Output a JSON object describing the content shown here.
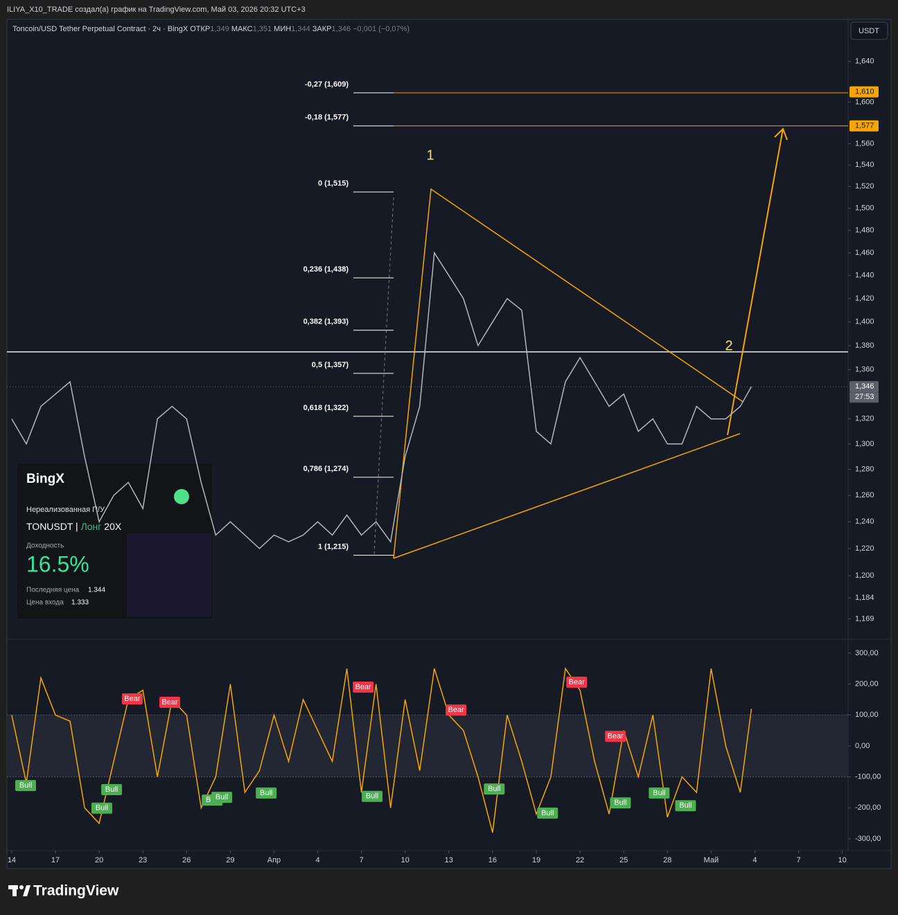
{
  "header": "ILIYA_X10_TRADE создал(а) график на TradingView.com, Май 03, 2026 20:32 UTC+3",
  "footer": "TradingView",
  "overlay": {
    "brand": "BingX",
    "pnl_label": "Нереализованная П/У",
    "symbol": "TONUSDT",
    "side": "Лонг",
    "leverage": "20X",
    "yield_label": "Доходность",
    "yield": "16.5%",
    "last_price_label": "Последняя цена",
    "last_price": "1.344",
    "entry_label": "Цена входа",
    "entry": "1.333"
  },
  "chart_data": [
    {
      "type": "line",
      "title": "Toncoin/USD Tether Perpetual Contract · 2ч · BingX",
      "ohlc": [
        "ОТКР",
        "1,349",
        "МАКС",
        "1,351",
        "МИН",
        "1,344",
        "ЗАКР",
        "1,346"
      ],
      "change": "−0,001 (−0,07%)",
      "currency": "USDT",
      "log_scale": true,
      "color": "#b2b5be",
      "xlim": [
        -0.33,
        57.4
      ],
      "ylim": [
        1156,
        1681
      ],
      "xticks": [
        {
          "value": 0,
          "label": "14"
        },
        {
          "value": 3,
          "label": "17"
        },
        {
          "value": 6,
          "label": "20"
        },
        {
          "value": 9,
          "label": "23"
        },
        {
          "value": 12,
          "label": "26"
        },
        {
          "value": 15,
          "label": "29"
        },
        {
          "value": 18,
          "label": "Апр"
        },
        {
          "value": 21,
          "label": "4"
        },
        {
          "value": 24,
          "label": "7"
        },
        {
          "value": 27,
          "label": "10"
        },
        {
          "value": 30,
          "label": "13"
        },
        {
          "value": 33,
          "label": "16"
        },
        {
          "value": 36,
          "label": "19"
        },
        {
          "value": 39,
          "label": "22"
        },
        {
          "value": 42,
          "label": "25"
        },
        {
          "value": 45,
          "label": "28"
        },
        {
          "value": 48,
          "label": "Май"
        },
        {
          "value": 51,
          "label": "4"
        },
        {
          "value": 54,
          "label": "7"
        },
        {
          "value": 57,
          "label": "10"
        }
      ],
      "yticks": [
        {
          "value": 1640,
          "label": "1,640"
        },
        {
          "value": 1600,
          "label": "1,600"
        },
        {
          "value": 1560,
          "label": "1,560"
        },
        {
          "value": 1540,
          "label": "1,540"
        },
        {
          "value": 1520,
          "label": "1,520"
        },
        {
          "value": 1500,
          "label": "1,500"
        },
        {
          "value": 1480,
          "label": "1,480"
        },
        {
          "value": 1460,
          "label": "1,460"
        },
        {
          "value": 1440,
          "label": "1,440"
        },
        {
          "value": 1420,
          "label": "1,420"
        },
        {
          "value": 1400,
          "label": "1,400"
        },
        {
          "value": 1380,
          "label": "1,380"
        },
        {
          "value": 1360,
          "label": "1,360"
        },
        {
          "value": 1320,
          "label": "1,320"
        },
        {
          "value": 1300,
          "label": "1,300"
        },
        {
          "value": 1280,
          "label": "1,280"
        },
        {
          "value": 1260,
          "label": "1,260"
        },
        {
          "value": 1240,
          "label": "1,240"
        },
        {
          "value": 1220,
          "label": "1,220"
        },
        {
          "value": 1200,
          "label": "1,200"
        },
        {
          "value": 1184,
          "label": "1,184"
        },
        {
          "value": 1169,
          "label": "1,169"
        }
      ],
      "x": [
        0,
        1,
        2,
        3,
        4,
        5,
        6,
        7,
        8,
        9,
        10,
        11,
        12,
        13,
        14,
        15,
        16,
        17,
        18,
        19,
        20,
        21,
        22,
        23,
        24,
        25,
        26,
        27,
        28,
        29,
        30,
        31,
        32,
        33,
        34,
        35,
        36,
        37,
        38,
        39,
        40,
        41,
        42,
        43,
        44,
        45,
        46,
        47,
        48,
        49,
        50,
        50.76
      ],
      "values": [
        1320,
        1300,
        1330,
        1340,
        1350,
        1290,
        1240,
        1260,
        1270,
        1250,
        1320,
        1330,
        1320,
        1270,
        1230,
        1240,
        1230,
        1220,
        1230,
        1225,
        1230,
        1240,
        1230,
        1245,
        1230,
        1240,
        1225,
        1290,
        1330,
        1460,
        1440,
        1420,
        1380,
        1400,
        1420,
        1410,
        1310,
        1300,
        1350,
        1370,
        1350,
        1330,
        1340,
        1310,
        1320,
        1300,
        1300,
        1330,
        1320,
        1320,
        1330,
        1346
      ],
      "fib_levels": [
        {
          "label": "-0,27 (1,609)",
          "value": 1609
        },
        {
          "label": "-0,18 (1,577)",
          "value": 1577
        },
        {
          "label": "0 (1,515)",
          "value": 1515
        },
        {
          "label": "0,236 (1,438)",
          "value": 1438
        },
        {
          "label": "0,382 (1,393)",
          "value": 1393
        },
        {
          "label": "0,5 (1,357)",
          "value": 1357
        },
        {
          "label": "0,618 (1,322)",
          "value": 1322
        },
        {
          "label": "0,786 (1,274)",
          "value": 1274
        },
        {
          "label": "1 (1,215)",
          "value": 1215
        }
      ],
      "price_tags": [
        {
          "value": 1610,
          "label": "1,610",
          "color": "#f7a600"
        },
        {
          "value": 1577,
          "label": "1,577",
          "color": "#f7a600"
        },
        {
          "value": 1346,
          "label": "1,346",
          "color": "#5d606b"
        }
      ],
      "countdown": "27:53",
      "wave_labels": [
        "1",
        "2"
      ]
    },
    {
      "type": "line",
      "color": "#f7a600",
      "xlim": [
        -0.33,
        57.4
      ],
      "ylim": [
        -338,
        340
      ],
      "band": [
        -100,
        100
      ],
      "yticks": [
        {
          "value": 300,
          "label": "300,00"
        },
        {
          "value": 200,
          "label": "200,00"
        },
        {
          "value": 100,
          "label": "100,00"
        },
        {
          "value": 0,
          "label": "0,00"
        },
        {
          "value": -100,
          "label": "-100,00"
        },
        {
          "value": -200,
          "label": "-200,00"
        },
        {
          "value": -300,
          "label": "-300,00"
        }
      ],
      "x": [
        0,
        1,
        2,
        3,
        4,
        5,
        6,
        7,
        8,
        9,
        10,
        11,
        12,
        13,
        14,
        15,
        16,
        17,
        18,
        19,
        20,
        21,
        22,
        23,
        24,
        25,
        26,
        27,
        28,
        29,
        30,
        31,
        32,
        33,
        34,
        35,
        36,
        37,
        38,
        39,
        40,
        41,
        42,
        43,
        44,
        45,
        46,
        47,
        48,
        49,
        50,
        50.76
      ],
      "values": [
        100,
        -120,
        220,
        100,
        80,
        -200,
        -250,
        -50,
        150,
        180,
        -100,
        150,
        100,
        -200,
        -100,
        200,
        -150,
        -80,
        100,
        -50,
        150,
        50,
        -50,
        250,
        -150,
        200,
        -200,
        150,
        -80,
        250,
        100,
        50,
        -100,
        -280,
        100,
        -50,
        -220,
        -100,
        250,
        180,
        -50,
        -220,
        50,
        -100,
        100,
        -230,
        -100,
        -150,
        250,
        0,
        -150,
        120
      ],
      "signals": [
        {
          "label": "Bull",
          "x": 0.24,
          "value": -128
        },
        {
          "label": "Bull",
          "x": 5.47,
          "value": -201
        },
        {
          "label": "Bull",
          "x": 6.14,
          "value": -141
        },
        {
          "label": "Bear",
          "x": 7.56,
          "value": 152
        },
        {
          "label": "Bear",
          "x": 10.13,
          "value": 141
        },
        {
          "label": "Bull",
          "x": 13.04,
          "value": -175
        },
        {
          "label": "Bull",
          "x": 13.7,
          "value": -166
        },
        {
          "label": "Bull",
          "x": 16.75,
          "value": -152
        },
        {
          "label": "Bear",
          "x": 23.41,
          "value": 190
        },
        {
          "label": "Bull",
          "x": 24.02,
          "value": -163
        },
        {
          "label": "Bear",
          "x": 29.78,
          "value": 116
        },
        {
          "label": "Bull",
          "x": 32.4,
          "value": -139
        },
        {
          "label": "Bull",
          "x": 36.06,
          "value": -217
        },
        {
          "label": "Bear",
          "x": 38.06,
          "value": 206
        },
        {
          "label": "Bear",
          "x": 40.72,
          "value": 31
        },
        {
          "label": "Bull",
          "x": 41.06,
          "value": -184
        },
        {
          "label": "Bull",
          "x": 43.72,
          "value": -152
        },
        {
          "label": "Bull",
          "x": 45.53,
          "value": -193
        }
      ]
    }
  ]
}
